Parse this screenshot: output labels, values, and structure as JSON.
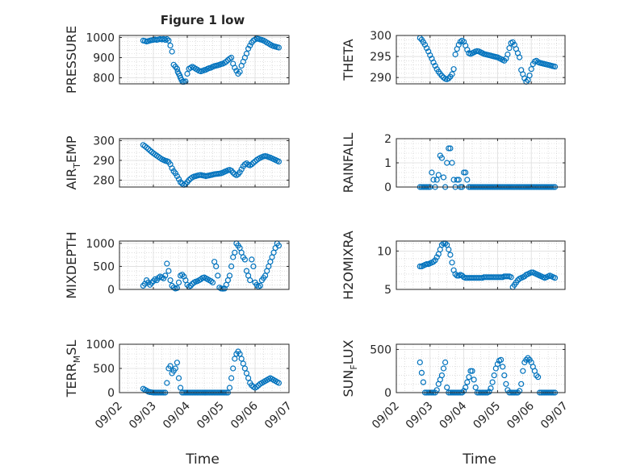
{
  "figure": {
    "title": "Figure 1 low",
    "xlabel": "Time",
    "marker_color": "#0072BD",
    "x_ticks": [
      "09/02",
      "09/03",
      "09/04",
      "09/05",
      "09/06",
      "09/07"
    ]
  },
  "chart_data": [
    {
      "type": "scatter",
      "name": "pressure",
      "title": "Figure 1 low",
      "xlabel": "",
      "ylabel": "PRESSURE",
      "ylim": [
        770,
        1010
      ],
      "yticks": [
        800,
        900,
        1000
      ],
      "grid": true,
      "x": [
        0.7,
        0.75,
        0.8,
        0.85,
        0.9,
        0.95,
        1.0,
        1.05,
        1.1,
        1.15,
        1.2,
        1.25,
        1.3,
        1.35,
        1.4,
        1.45,
        1.5,
        1.55,
        1.6,
        1.65,
        1.7,
        1.72,
        1.75,
        1.78,
        1.8,
        1.83,
        1.86,
        1.9,
        1.95,
        2.0,
        2.05,
        2.1,
        2.15,
        2.2,
        2.25,
        2.3,
        2.35,
        2.4,
        2.45,
        2.5,
        2.55,
        2.6,
        2.65,
        2.7,
        2.75,
        2.8,
        2.85,
        2.9,
        2.95,
        3.0,
        3.05,
        3.1,
        3.15,
        3.2,
        3.25,
        3.3,
        3.35,
        3.4,
        3.45,
        3.5,
        3.55,
        3.6,
        3.65,
        3.7,
        3.75,
        3.8,
        3.85,
        3.9,
        3.95,
        4.0,
        4.05,
        4.1,
        4.15,
        4.2,
        4.25,
        4.3,
        4.35,
        4.4,
        4.45,
        4.5,
        4.55,
        4.6,
        4.65,
        4.7
      ],
      "y": [
        985,
        983,
        980,
        982,
        985,
        987,
        988,
        990,
        988,
        990,
        992,
        990,
        993,
        988,
        992,
        985,
        960,
        930,
        865,
        855,
        845,
        830,
        820,
        810,
        800,
        790,
        780,
        780,
        782,
        820,
        845,
        850,
        855,
        850,
        845,
        840,
        835,
        832,
        835,
        838,
        840,
        845,
        848,
        850,
        855,
        858,
        860,
        862,
        865,
        868,
        870,
        875,
        880,
        888,
        895,
        900,
        870,
        850,
        835,
        820,
        830,
        860,
        880,
        900,
        920,
        945,
        960,
        975,
        985,
        990,
        995,
        993,
        990,
        988,
        985,
        980,
        975,
        970,
        965,
        960,
        957,
        955,
        952,
        950
      ]
    },
    {
      "type": "scatter",
      "name": "theta",
      "title": "",
      "xlabel": "",
      "ylabel": "THETA",
      "ylim": [
        288.5,
        300
      ],
      "yticks": [
        290,
        295,
        300
      ],
      "grid": true,
      "x": [
        0.7,
        0.75,
        0.8,
        0.85,
        0.9,
        0.95,
        1.0,
        1.05,
        1.1,
        1.15,
        1.2,
        1.25,
        1.3,
        1.35,
        1.4,
        1.45,
        1.5,
        1.55,
        1.6,
        1.65,
        1.7,
        1.75,
        1.8,
        1.85,
        1.9,
        1.95,
        2.0,
        2.05,
        2.1,
        2.15,
        2.2,
        2.25,
        2.3,
        2.35,
        2.4,
        2.45,
        2.5,
        2.55,
        2.6,
        2.65,
        2.7,
        2.75,
        2.8,
        2.85,
        2.9,
        2.95,
        3.0,
        3.05,
        3.1,
        3.15,
        3.2,
        3.25,
        3.3,
        3.35,
        3.4,
        3.45,
        3.5,
        3.55,
        3.6,
        3.65,
        3.7,
        3.75,
        3.8,
        3.85,
        3.9,
        3.95,
        4.0,
        4.05,
        4.1,
        4.15,
        4.2,
        4.25,
        4.3,
        4.35,
        4.4,
        4.45,
        4.5,
        4.55,
        4.6,
        4.65,
        4.7
      ],
      "y": [
        299.4,
        299.0,
        298.4,
        297.8,
        297.0,
        296.2,
        295.3,
        294.5,
        293.6,
        292.8,
        292.0,
        291.4,
        290.9,
        290.4,
        290.0,
        289.7,
        289.6,
        289.8,
        290.2,
        290.8,
        292.0,
        295.5,
        296.8,
        297.8,
        298.5,
        298.8,
        298.5,
        297.6,
        296.6,
        295.8,
        295.6,
        295.8,
        296.0,
        296.2,
        296.3,
        296.2,
        296.0,
        295.8,
        295.6,
        295.5,
        295.4,
        295.3,
        295.2,
        295.1,
        295.0,
        294.9,
        294.8,
        294.6,
        294.4,
        294.2,
        294.0,
        294.5,
        295.5,
        297.0,
        298.2,
        298.4,
        297.8,
        296.8,
        295.8,
        294.8,
        291.8,
        290.8,
        289.8,
        289.0,
        289.4,
        290.5,
        292.0,
        293.2,
        293.8,
        294.0,
        293.7,
        293.5,
        293.4,
        293.3,
        293.2,
        293.1,
        293.0,
        292.9,
        292.8,
        292.7,
        292.6
      ]
    },
    {
      "type": "scatter",
      "name": "air_temp",
      "title": "",
      "xlabel": "",
      "ylabel": "AIR_TEMP",
      "ylim": [
        276.5,
        301
      ],
      "yticks": [
        280,
        290,
        300
      ],
      "grid": true,
      "x": [
        0.7,
        0.75,
        0.8,
        0.85,
        0.9,
        0.95,
        1.0,
        1.05,
        1.1,
        1.15,
        1.2,
        1.25,
        1.3,
        1.35,
        1.4,
        1.45,
        1.5,
        1.55,
        1.6,
        1.65,
        1.7,
        1.75,
        1.8,
        1.85,
        1.9,
        1.95,
        2.0,
        2.05,
        2.1,
        2.15,
        2.2,
        2.25,
        2.3,
        2.35,
        2.4,
        2.45,
        2.5,
        2.55,
        2.6,
        2.65,
        2.7,
        2.75,
        2.8,
        2.85,
        2.9,
        2.95,
        3.0,
        3.05,
        3.1,
        3.15,
        3.2,
        3.25,
        3.3,
        3.35,
        3.4,
        3.45,
        3.5,
        3.55,
        3.6,
        3.65,
        3.7,
        3.75,
        3.8,
        3.85,
        3.9,
        3.95,
        4.0,
        4.05,
        4.1,
        4.15,
        4.2,
        4.25,
        4.3,
        4.35,
        4.4,
        4.45,
        4.5,
        4.55,
        4.6,
        4.65,
        4.7
      ],
      "y": [
        297.8,
        297.2,
        296.5,
        295.8,
        295.0,
        294.3,
        293.6,
        293.0,
        292.4,
        291.8,
        291.2,
        290.6,
        290.2,
        289.8,
        289.6,
        289.2,
        288.0,
        286.0,
        284.5,
        283.5,
        282.0,
        280.5,
        279.0,
        278.2,
        277.6,
        278.0,
        279.0,
        280.0,
        280.8,
        281.4,
        281.8,
        282.0,
        282.3,
        282.5,
        282.6,
        282.4,
        282.2,
        282.0,
        282.2,
        282.4,
        282.6,
        282.8,
        283.0,
        283.1,
        283.2,
        283.3,
        283.5,
        283.8,
        284.2,
        284.6,
        285.0,
        285.2,
        284.8,
        283.8,
        283.0,
        282.5,
        283.0,
        284.0,
        285.5,
        287.0,
        288.0,
        288.5,
        287.8,
        287.5,
        288.0,
        288.8,
        289.5,
        290.2,
        290.8,
        291.3,
        291.7,
        292.0,
        292.2,
        292.0,
        291.7,
        291.4,
        291.0,
        290.6,
        290.2,
        289.8,
        289.4
      ]
    },
    {
      "type": "scatter",
      "name": "rainfall",
      "title": "",
      "xlabel": "",
      "ylabel": "RAINFALL",
      "ylim": [
        0,
        2
      ],
      "yticks": [
        0,
        1,
        2
      ],
      "grid": true,
      "x": [
        0.7,
        0.75,
        0.8,
        0.85,
        0.9,
        0.95,
        1.0,
        1.05,
        1.1,
        1.15,
        1.2,
        1.25,
        1.3,
        1.35,
        1.4,
        1.45,
        1.5,
        1.55,
        1.6,
        1.65,
        1.7,
        1.75,
        1.8,
        1.85,
        1.9,
        1.95,
        2.0,
        2.05,
        2.1,
        2.15,
        2.2,
        2.25,
        2.3,
        2.35,
        2.4,
        2.45,
        2.5,
        2.55,
        2.6,
        2.65,
        2.7,
        2.75,
        2.8,
        2.85,
        2.9,
        2.95,
        3.0,
        3.05,
        3.1,
        3.15,
        3.2,
        3.25,
        3.3,
        3.35,
        3.4,
        3.45,
        3.5,
        3.55,
        3.6,
        3.65,
        3.7,
        3.75,
        3.8,
        3.85,
        3.9,
        3.95,
        4.0,
        4.05,
        4.1,
        4.15,
        4.2,
        4.25,
        4.3,
        4.35,
        4.4,
        4.45,
        4.5,
        4.55,
        4.6,
        4.65,
        4.7
      ],
      "y": [
        0,
        0,
        0,
        0,
        0,
        0,
        0,
        0.6,
        0.3,
        0,
        0.3,
        0.5,
        1.3,
        1.2,
        0.4,
        0,
        1.0,
        1.6,
        1.6,
        1.0,
        0.3,
        0,
        0.3,
        0.3,
        0,
        0,
        0.6,
        0.6,
        0.3,
        0,
        0,
        0,
        0,
        0,
        0,
        0,
        0,
        0,
        0,
        0,
        0,
        0,
        0,
        0,
        0,
        0,
        0,
        0,
        0,
        0,
        0,
        0,
        0,
        0,
        0,
        0,
        0,
        0,
        0,
        0,
        0,
        0,
        0,
        0,
        0,
        0,
        0,
        0,
        0,
        0,
        0,
        0,
        0,
        0,
        0,
        0,
        0,
        0,
        0,
        0,
        0
      ]
    },
    {
      "type": "scatter",
      "name": "mixdepth",
      "title": "",
      "xlabel": "",
      "ylabel": "MIXDEPTH",
      "ylim": [
        0,
        1050
      ],
      "yticks": [
        0,
        500,
        1000
      ],
      "grid": true,
      "x": [
        0.7,
        0.75,
        0.8,
        0.85,
        0.9,
        0.95,
        1.0,
        1.05,
        1.1,
        1.15,
        1.2,
        1.25,
        1.3,
        1.35,
        1.4,
        1.45,
        1.5,
        1.55,
        1.6,
        1.65,
        1.7,
        1.75,
        1.8,
        1.85,
        1.9,
        1.95,
        2.0,
        2.05,
        2.1,
        2.15,
        2.2,
        2.25,
        2.3,
        2.35,
        2.4,
        2.45,
        2.5,
        2.55,
        2.6,
        2.65,
        2.7,
        2.75,
        2.8,
        2.85,
        2.9,
        2.95,
        3.0,
        3.05,
        3.1,
        3.15,
        3.2,
        3.25,
        3.3,
        3.35,
        3.4,
        3.45,
        3.5,
        3.55,
        3.6,
        3.65,
        3.7,
        3.75,
        3.8,
        3.85,
        3.9,
        3.95,
        4.0,
        4.05,
        4.1,
        4.15,
        4.2,
        4.25,
        4.3,
        4.35,
        4.4,
        4.45,
        4.5,
        4.55,
        4.6,
        4.65,
        4.7
      ],
      "y": [
        80,
        120,
        200,
        150,
        100,
        140,
        180,
        220,
        200,
        250,
        280,
        260,
        240,
        300,
        560,
        400,
        200,
        80,
        40,
        20,
        30,
        150,
        300,
        320,
        280,
        200,
        100,
        60,
        80,
        120,
        150,
        170,
        180,
        200,
        220,
        250,
        260,
        240,
        220,
        200,
        180,
        150,
        600,
        500,
        300,
        40,
        20,
        15,
        20,
        100,
        200,
        300,
        500,
        700,
        800,
        1000,
        950,
        900,
        800,
        700,
        650,
        400,
        300,
        200,
        650,
        500,
        150,
        100,
        60,
        80,
        200,
        250,
        300,
        400,
        500,
        600,
        700,
        800,
        900,
        1000,
        950
      ]
    },
    {
      "type": "scatter",
      "name": "h2omixra",
      "title": "",
      "xlabel": "",
      "ylabel": "H2OMIXRA",
      "ylim": [
        5,
        11.3
      ],
      "yticks": [
        5,
        10
      ],
      "grid": true,
      "x": [
        0.7,
        0.75,
        0.8,
        0.85,
        0.9,
        0.95,
        1.0,
        1.05,
        1.1,
        1.15,
        1.2,
        1.25,
        1.3,
        1.35,
        1.4,
        1.45,
        1.5,
        1.55,
        1.6,
        1.65,
        1.7,
        1.75,
        1.8,
        1.85,
        1.9,
        1.95,
        2.0,
        2.05,
        2.1,
        2.15,
        2.2,
        2.25,
        2.3,
        2.35,
        2.4,
        2.45,
        2.5,
        2.55,
        2.6,
        2.65,
        2.7,
        2.75,
        2.8,
        2.85,
        2.9,
        2.95,
        3.0,
        3.05,
        3.1,
        3.15,
        3.2,
        3.25,
        3.3,
        3.35,
        3.4,
        3.45,
        3.5,
        3.55,
        3.6,
        3.65,
        3.7,
        3.75,
        3.8,
        3.85,
        3.9,
        3.95,
        4.0,
        4.05,
        4.1,
        4.15,
        4.2,
        4.25,
        4.3,
        4.35,
        4.4,
        4.45,
        4.5,
        4.55,
        4.6,
        4.65,
        4.7
      ],
      "y": [
        8.0,
        8.0,
        8.1,
        8.2,
        8.3,
        8.3,
        8.4,
        8.5,
        8.6,
        8.8,
        9.2,
        9.6,
        10.2,
        10.8,
        11.0,
        11.0,
        10.8,
        10.2,
        9.5,
        8.5,
        7.5,
        7.0,
        6.8,
        6.8,
        6.9,
        6.8,
        6.6,
        6.5,
        6.5,
        6.5,
        6.5,
        6.5,
        6.5,
        6.5,
        6.5,
        6.5,
        6.5,
        6.5,
        6.6,
        6.6,
        6.6,
        6.6,
        6.6,
        6.6,
        6.6,
        6.6,
        6.6,
        6.6,
        6.6,
        6.6,
        6.7,
        6.7,
        6.7,
        6.7,
        6.6,
        5.3,
        5.6,
        5.9,
        6.2,
        6.4,
        6.5,
        6.6,
        6.7,
        6.9,
        7.0,
        7.1,
        7.2,
        7.2,
        7.1,
        7.0,
        6.9,
        6.8,
        6.7,
        6.6,
        6.5,
        6.6,
        6.7,
        6.8,
        6.7,
        6.6,
        6.5
      ]
    },
    {
      "type": "scatter",
      "name": "terr_msl",
      "title": "",
      "xlabel": "",
      "ylabel": "TERR_MSL",
      "ylim": [
        0,
        1000
      ],
      "yticks": [
        0,
        500,
        1000
      ],
      "grid": true,
      "x": [
        0.7,
        0.75,
        0.8,
        0.85,
        0.9,
        0.95,
        1.0,
        1.05,
        1.1,
        1.15,
        1.2,
        1.25,
        1.3,
        1.35,
        1.4,
        1.45,
        1.5,
        1.55,
        1.6,
        1.65,
        1.7,
        1.75,
        1.8,
        1.85,
        1.9,
        1.95,
        2.0,
        2.05,
        2.1,
        2.15,
        2.2,
        2.25,
        2.3,
        2.35,
        2.4,
        2.45,
        2.5,
        2.55,
        2.6,
        2.65,
        2.7,
        2.75,
        2.8,
        2.85,
        2.9,
        2.95,
        3.0,
        3.05,
        3.1,
        3.15,
        3.2,
        3.25,
        3.3,
        3.35,
        3.4,
        3.45,
        3.5,
        3.55,
        3.6,
        3.65,
        3.7,
        3.75,
        3.8,
        3.85,
        3.9,
        3.95,
        4.0,
        4.05,
        4.1,
        4.15,
        4.2,
        4.25,
        4.3,
        4.35,
        4.4,
        4.45,
        4.5,
        4.55,
        4.6,
        4.65,
        4.7
      ],
      "y": [
        80,
        60,
        40,
        20,
        10,
        5,
        0,
        0,
        0,
        0,
        0,
        0,
        0,
        0,
        200,
        500,
        550,
        400,
        450,
        500,
        620,
        300,
        100,
        0,
        0,
        0,
        0,
        0,
        0,
        0,
        0,
        0,
        0,
        0,
        0,
        0,
        0,
        0,
        0,
        0,
        0,
        0,
        0,
        0,
        0,
        0,
        0,
        0,
        0,
        0,
        0,
        100,
        300,
        500,
        700,
        800,
        850,
        800,
        700,
        600,
        500,
        400,
        300,
        200,
        150,
        120,
        100,
        120,
        150,
        180,
        200,
        220,
        240,
        260,
        280,
        300,
        280,
        260,
        240,
        220,
        200
      ]
    },
    {
      "type": "scatter",
      "name": "sun_flux",
      "title": "",
      "xlabel": "",
      "ylabel": "SUN_FLUX",
      "ylim": [
        0,
        560
      ],
      "yticks": [
        0,
        500
      ],
      "grid": true,
      "x": [
        0.7,
        0.75,
        0.8,
        0.85,
        0.9,
        0.95,
        1.0,
        1.05,
        1.1,
        1.15,
        1.2,
        1.25,
        1.3,
        1.35,
        1.4,
        1.45,
        1.5,
        1.55,
        1.6,
        1.65,
        1.7,
        1.75,
        1.8,
        1.85,
        1.9,
        1.95,
        2.0,
        2.05,
        2.1,
        2.15,
        2.2,
        2.25,
        2.3,
        2.35,
        2.4,
        2.45,
        2.5,
        2.55,
        2.6,
        2.65,
        2.7,
        2.75,
        2.8,
        2.85,
        2.9,
        2.95,
        3.0,
        3.05,
        3.1,
        3.15,
        3.2,
        3.25,
        3.3,
        3.35,
        3.4,
        3.45,
        3.5,
        3.55,
        3.6,
        3.65,
        3.7,
        3.75,
        3.8,
        3.85,
        3.9,
        3.95,
        4.0,
        4.05,
        4.1,
        4.15,
        4.2,
        4.25,
        4.3,
        4.35,
        4.4,
        4.45,
        4.5,
        4.55,
        4.6,
        4.65,
        4.7
      ],
      "y": [
        350,
        230,
        120,
        0,
        0,
        0,
        0,
        0,
        0,
        0,
        30,
        100,
        150,
        200,
        280,
        350,
        60,
        0,
        0,
        0,
        0,
        0,
        0,
        0,
        0,
        0,
        20,
        60,
        120,
        180,
        250,
        250,
        150,
        60,
        0,
        0,
        0,
        0,
        0,
        0,
        0,
        10,
        50,
        120,
        200,
        280,
        330,
        370,
        380,
        300,
        200,
        100,
        30,
        0,
        0,
        0,
        0,
        0,
        0,
        20,
        100,
        250,
        350,
        380,
        400,
        380,
        350,
        300,
        250,
        200,
        180,
        0,
        0,
        0,
        0,
        0,
        0,
        0,
        0,
        0,
        0
      ]
    }
  ]
}
